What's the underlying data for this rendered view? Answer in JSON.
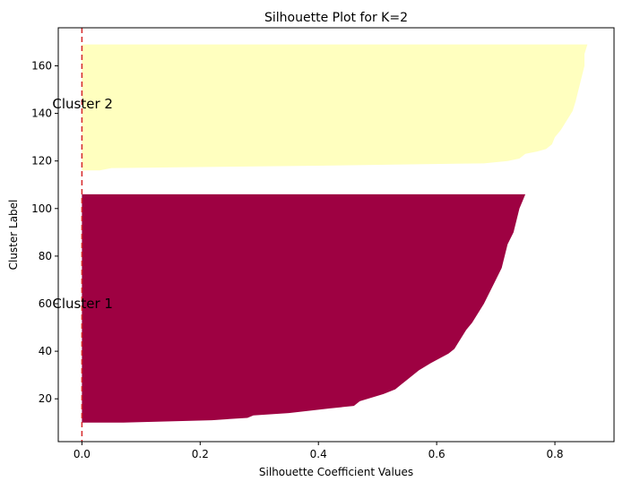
{
  "chart_data": {
    "type": "area",
    "title": "Silhouette Plot for K=2",
    "xlabel": "Silhouette Coefficient Values",
    "ylabel": "Cluster Label",
    "xlim": [
      -0.04,
      0.9
    ],
    "ylim": [
      2,
      176
    ],
    "xticks": [
      0.0,
      0.2,
      0.4,
      0.6,
      0.8
    ],
    "xtick_labels": [
      "0.0",
      "0.2",
      "0.4",
      "0.6",
      "0.8"
    ],
    "yticks": [
      20,
      40,
      60,
      80,
      100,
      120,
      140,
      160
    ],
    "ytick_labels": [
      "20",
      "40",
      "60",
      "80",
      "100",
      "120",
      "140",
      "160"
    ],
    "grid": false,
    "reference_line": {
      "x": 0.0,
      "style": "dashed",
      "color": "#d62728"
    },
    "series": [
      {
        "label": "Cluster 1",
        "label_position": [
          -0.05,
          60
        ],
        "color": "#9e0142",
        "y_range": [
          10,
          106
        ],
        "profile": [
          [
            10,
            0.0
          ],
          [
            10,
            0.07
          ],
          [
            11,
            0.22
          ],
          [
            12,
            0.28
          ],
          [
            13,
            0.29
          ],
          [
            14,
            0.35
          ],
          [
            16,
            0.42
          ],
          [
            17,
            0.46
          ],
          [
            19,
            0.47
          ],
          [
            22,
            0.51
          ],
          [
            24,
            0.53
          ],
          [
            26,
            0.54
          ],
          [
            28,
            0.55
          ],
          [
            32,
            0.57
          ],
          [
            35,
            0.59
          ],
          [
            39,
            0.62
          ],
          [
            41,
            0.63
          ],
          [
            45,
            0.64
          ],
          [
            49,
            0.65
          ],
          [
            52,
            0.66
          ],
          [
            56,
            0.67
          ],
          [
            60,
            0.68
          ],
          [
            65,
            0.69
          ],
          [
            70,
            0.7
          ],
          [
            75,
            0.71
          ],
          [
            80,
            0.715
          ],
          [
            85,
            0.72
          ],
          [
            90,
            0.73
          ],
          [
            95,
            0.735
          ],
          [
            100,
            0.74
          ],
          [
            103,
            0.745
          ],
          [
            106,
            0.75
          ],
          [
            106,
            0.0
          ]
        ]
      },
      {
        "label": "Cluster 2",
        "label_position": [
          -0.05,
          144
        ],
        "color": "#ffffbf",
        "y_range": [
          116,
          169
        ],
        "profile": [
          [
            116,
            0.0
          ],
          [
            116,
            0.03
          ],
          [
            117,
            0.05
          ],
          [
            118,
            0.4
          ],
          [
            119,
            0.68
          ],
          [
            120,
            0.72
          ],
          [
            121,
            0.74
          ],
          [
            123,
            0.75
          ],
          [
            124,
            0.77
          ],
          [
            125,
            0.785
          ],
          [
            127,
            0.795
          ],
          [
            130,
            0.8
          ],
          [
            133,
            0.81
          ],
          [
            137,
            0.82
          ],
          [
            141,
            0.83
          ],
          [
            145,
            0.835
          ],
          [
            150,
            0.84
          ],
          [
            155,
            0.845
          ],
          [
            160,
            0.85
          ],
          [
            165,
            0.85
          ],
          [
            169,
            0.855
          ],
          [
            169,
            0.0
          ]
        ]
      }
    ]
  }
}
